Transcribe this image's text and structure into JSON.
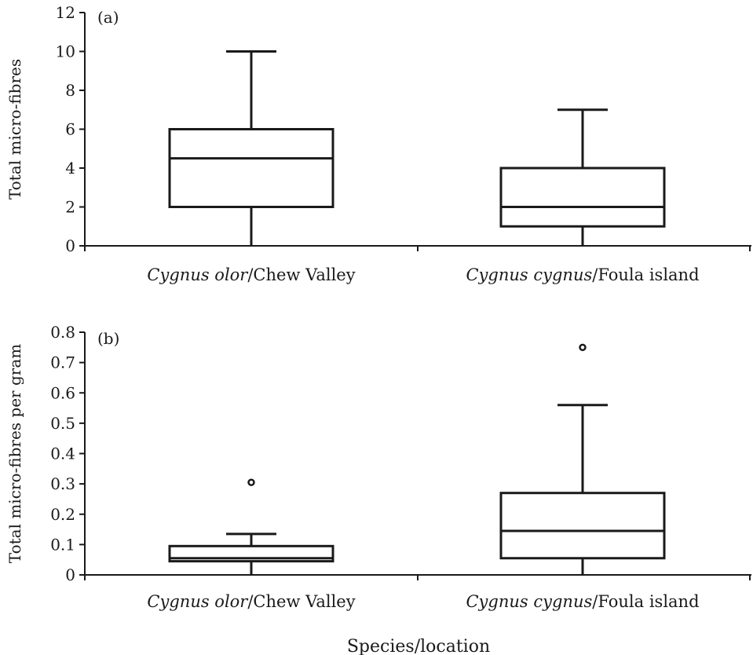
{
  "chart_data": [
    {
      "type": "box",
      "panel_label": "(a)",
      "ylabel": "Total micro-fibres",
      "ylim": [
        0,
        12
      ],
      "yticks": [
        0,
        2,
        4,
        6,
        8,
        10,
        12
      ],
      "tick_labels": [
        "0",
        "2",
        "4",
        "6",
        "8",
        "10",
        "12"
      ],
      "categories": [
        {
          "species": "Cygnus olor",
          "location": "/Chew Valley"
        },
        {
          "species": "Cygnus cygnus",
          "location": "/Foula island"
        }
      ],
      "boxes": [
        {
          "whisker_low": 0,
          "q1": 2,
          "median": 4.5,
          "q3": 6,
          "whisker_high": 10,
          "outliers": []
        },
        {
          "whisker_low": 0,
          "q1": 1,
          "median": 2,
          "q3": 4,
          "whisker_high": 7,
          "outliers": []
        }
      ]
    },
    {
      "type": "box",
      "panel_label": "(b)",
      "ylabel": "Total micro-fibres per gram",
      "ylim": [
        0,
        0.8
      ],
      "yticks": [
        0,
        0.1,
        0.2,
        0.3,
        0.4,
        0.5,
        0.6,
        0.7,
        0.8
      ],
      "tick_labels": [
        "0",
        "0.1",
        "0.2",
        "0.3",
        "0.4",
        "0.5",
        "0.6",
        "0.7",
        "0.8"
      ],
      "categories": [
        {
          "species": "Cygnus olor",
          "location": "/Chew Valley"
        },
        {
          "species": "Cygnus cygnus",
          "location": "/Foula island"
        }
      ],
      "boxes": [
        {
          "whisker_low": 0,
          "q1": 0.045,
          "median": 0.055,
          "q3": 0.095,
          "whisker_high": 0.135,
          "outliers": [
            0.305
          ]
        },
        {
          "whisker_low": 0,
          "q1": 0.055,
          "median": 0.145,
          "q3": 0.27,
          "whisker_high": 0.56,
          "outliers": [
            0.75
          ]
        }
      ]
    }
  ],
  "xlabel": "Species/location"
}
